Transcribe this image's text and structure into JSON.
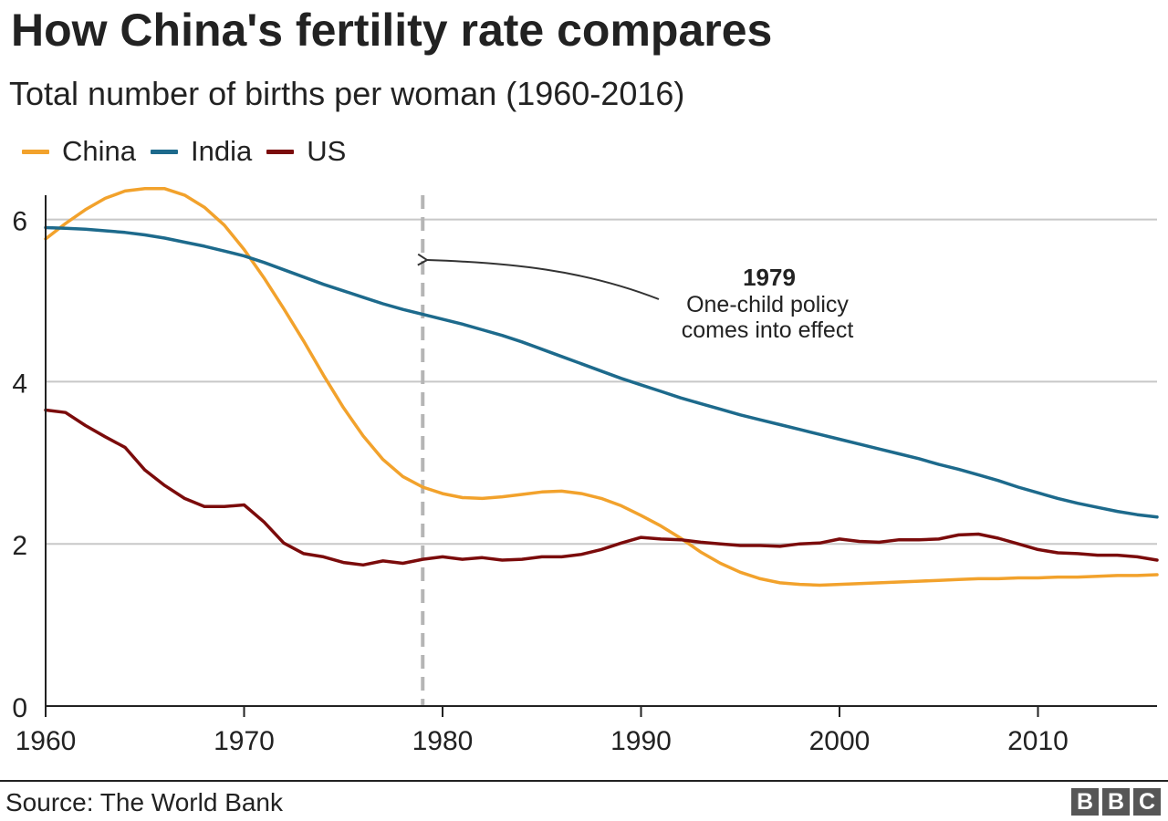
{
  "header": {
    "title": "How China's fertility rate compares",
    "subtitle": "Total number of births per woman (1960-2016)"
  },
  "footer": {
    "source": "Source: The World Bank",
    "logo_letters": [
      "B",
      "B",
      "C"
    ]
  },
  "annotation": {
    "year_label": "1979",
    "line1": "One-child policy",
    "line2": "comes into effect",
    "x": 1979
  },
  "chart_data": {
    "type": "line",
    "title": "How China's fertility rate compares",
    "subtitle": "Total number of births per woman (1960-2016)",
    "xlabel": "",
    "ylabel": "",
    "xlim": [
      1960,
      2016
    ],
    "ylim": [
      0,
      6.4
    ],
    "x_ticks": [
      1960,
      1970,
      1980,
      1990,
      2000,
      2010
    ],
    "y_ticks": [
      0,
      2,
      4,
      6
    ],
    "grid": "horizontal",
    "legend_position": "top-left",
    "x": [
      1960,
      1961,
      1962,
      1963,
      1964,
      1965,
      1966,
      1967,
      1968,
      1969,
      1970,
      1971,
      1972,
      1973,
      1974,
      1975,
      1976,
      1977,
      1978,
      1979,
      1980,
      1981,
      1982,
      1983,
      1984,
      1985,
      1986,
      1987,
      1988,
      1989,
      1990,
      1991,
      1992,
      1993,
      1994,
      1995,
      1996,
      1997,
      1998,
      1999,
      2000,
      2001,
      2002,
      2003,
      2004,
      2005,
      2006,
      2007,
      2008,
      2009,
      2010,
      2011,
      2012,
      2013,
      2014,
      2015,
      2016
    ],
    "series": [
      {
        "name": "China",
        "color": "#f2a22c",
        "values": [
          5.76,
          5.95,
          6.12,
          6.26,
          6.35,
          6.38,
          6.38,
          6.3,
          6.15,
          5.93,
          5.63,
          5.28,
          4.9,
          4.5,
          4.08,
          3.68,
          3.33,
          3.04,
          2.83,
          2.7,
          2.62,
          2.57,
          2.56,
          2.58,
          2.61,
          2.64,
          2.65,
          2.62,
          2.56,
          2.47,
          2.35,
          2.22,
          2.07,
          1.9,
          1.76,
          1.65,
          1.57,
          1.52,
          1.5,
          1.49,
          1.5,
          1.51,
          1.52,
          1.53,
          1.54,
          1.55,
          1.56,
          1.57,
          1.57,
          1.58,
          1.58,
          1.59,
          1.59,
          1.6,
          1.61,
          1.61,
          1.62
        ]
      },
      {
        "name": "India",
        "color": "#1d6a8c",
        "values": [
          5.9,
          5.89,
          5.88,
          5.86,
          5.84,
          5.81,
          5.77,
          5.72,
          5.67,
          5.61,
          5.55,
          5.47,
          5.38,
          5.29,
          5.2,
          5.12,
          5.04,
          4.96,
          4.89,
          4.83,
          4.77,
          4.71,
          4.64,
          4.57,
          4.49,
          4.4,
          4.31,
          4.22,
          4.13,
          4.04,
          3.96,
          3.88,
          3.8,
          3.73,
          3.66,
          3.59,
          3.53,
          3.47,
          3.41,
          3.35,
          3.29,
          3.23,
          3.17,
          3.11,
          3.05,
          2.98,
          2.92,
          2.85,
          2.78,
          2.7,
          2.63,
          2.56,
          2.5,
          2.45,
          2.4,
          2.36,
          2.33
        ]
      },
      {
        "name": "US",
        "color": "#7b0b0b",
        "values": [
          3.65,
          3.62,
          3.46,
          3.32,
          3.19,
          2.91,
          2.72,
          2.56,
          2.46,
          2.46,
          2.48,
          2.27,
          2.01,
          1.88,
          1.84,
          1.77,
          1.74,
          1.79,
          1.76,
          1.81,
          1.84,
          1.81,
          1.83,
          1.8,
          1.81,
          1.84,
          1.84,
          1.87,
          1.93,
          2.01,
          2.08,
          2.06,
          2.05,
          2.02,
          2.0,
          1.98,
          1.98,
          1.97,
          2.0,
          2.01,
          2.06,
          2.03,
          2.02,
          2.05,
          2.05,
          2.06,
          2.11,
          2.12,
          2.07,
          2.0,
          1.93,
          1.89,
          1.88,
          1.86,
          1.86,
          1.84,
          1.8
        ]
      }
    ]
  }
}
